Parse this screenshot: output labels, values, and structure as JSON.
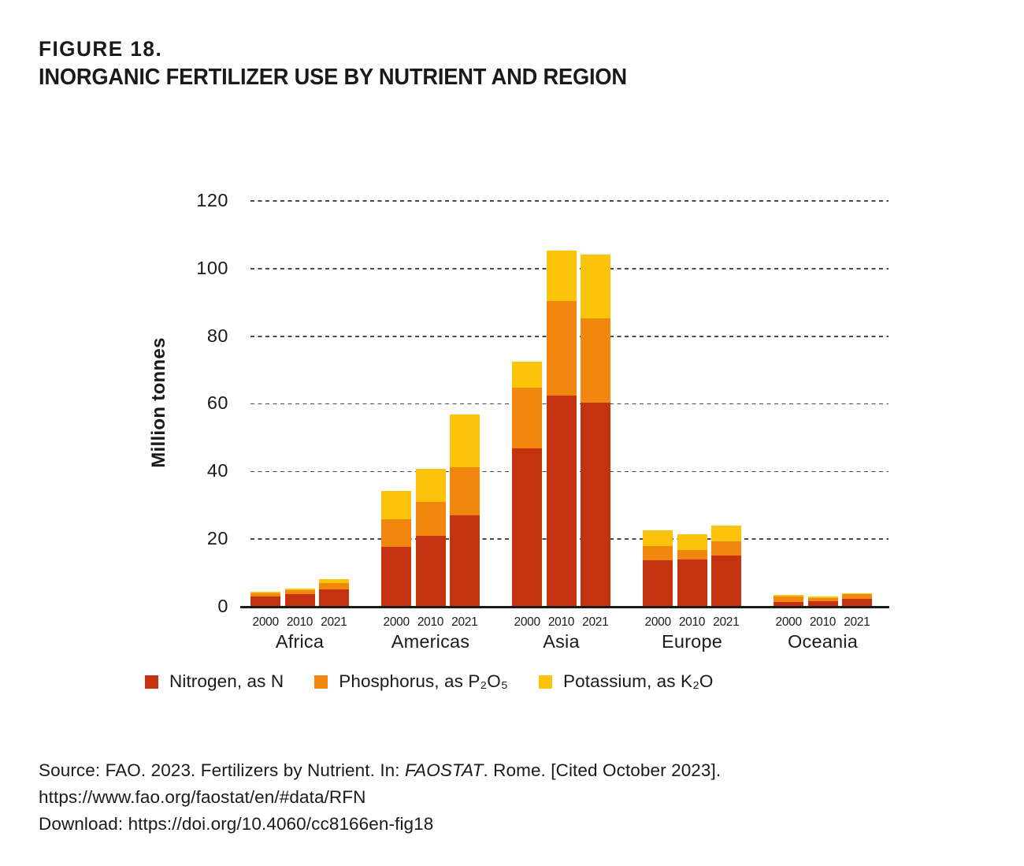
{
  "figure": {
    "label": "FIGURE 18.",
    "title": "INORGANIC FERTILIZER USE BY NUTRIENT AND REGION"
  },
  "chart_data": {
    "type": "bar",
    "stacked": true,
    "title": "Inorganic fertilizer use by nutrient and region",
    "ylabel": "Million tonnes",
    "xlabel": "",
    "ylim": [
      0,
      120
    ],
    "yticks": [
      0,
      20,
      40,
      60,
      80,
      100,
      120
    ],
    "grid": "horizontal dashed",
    "legend_position": "bottom",
    "unit": "million tonnes",
    "years": [
      "2000",
      "2010",
      "2021"
    ],
    "series_names": [
      "Nitrogen, as N",
      "Phosphorus, as P₂O₅",
      "Potassium, as K₂O"
    ],
    "colors": {
      "nitrogen": "#c5320f",
      "phosphorus": "#f1870e",
      "potassium": "#fcc30b"
    },
    "groups": [
      {
        "region": "Africa",
        "bars": [
          {
            "year": "2000",
            "nitrogen": 2.6,
            "phosphorus": 1.0,
            "potassium": 0.5,
            "total": 4.1
          },
          {
            "year": "2010",
            "nitrogen": 3.3,
            "phosphorus": 1.2,
            "potassium": 0.6,
            "total": 5.1
          },
          {
            "year": "2021",
            "nitrogen": 4.8,
            "phosphorus": 1.8,
            "potassium": 1.1,
            "total": 7.7
          }
        ]
      },
      {
        "region": "Americas",
        "bars": [
          {
            "year": "2000",
            "nitrogen": 17.3,
            "phosphorus": 8.2,
            "potassium": 8.4,
            "total": 33.9
          },
          {
            "year": "2010",
            "nitrogen": 20.6,
            "phosphorus": 10.0,
            "potassium": 9.9,
            "total": 40.5
          },
          {
            "year": "2021",
            "nitrogen": 26.7,
            "phosphorus": 14.3,
            "potassium": 15.6,
            "total": 56.6
          }
        ]
      },
      {
        "region": "Asia",
        "bars": [
          {
            "year": "2000",
            "nitrogen": 46.6,
            "phosphorus": 17.8,
            "potassium": 7.7,
            "total": 72.1
          },
          {
            "year": "2010",
            "nitrogen": 62.2,
            "phosphorus": 27.9,
            "potassium": 14.9,
            "total": 105.0
          },
          {
            "year": "2021",
            "nitrogen": 60.1,
            "phosphorus": 24.9,
            "potassium": 18.8,
            "total": 103.8
          }
        ]
      },
      {
        "region": "Europe",
        "bars": [
          {
            "year": "2000",
            "nitrogen": 13.3,
            "phosphorus": 4.3,
            "potassium": 4.6,
            "total": 22.2
          },
          {
            "year": "2010",
            "nitrogen": 13.6,
            "phosphorus": 2.9,
            "potassium": 4.7,
            "total": 21.2
          },
          {
            "year": "2021",
            "nitrogen": 14.9,
            "phosphorus": 4.2,
            "potassium": 4.6,
            "total": 23.7
          }
        ]
      },
      {
        "region": "Oceania",
        "bars": [
          {
            "year": "2000",
            "nitrogen": 1.1,
            "phosphorus": 1.6,
            "potassium": 0.4,
            "total": 3.1
          },
          {
            "year": "2010",
            "nitrogen": 1.2,
            "phosphorus": 1.1,
            "potassium": 0.3,
            "total": 2.6
          },
          {
            "year": "2021",
            "nitrogen": 1.9,
            "phosphorus": 1.4,
            "potassium": 0.4,
            "total": 3.7
          }
        ]
      }
    ]
  },
  "legend": {
    "items": [
      {
        "label": "Nitrogen, as N",
        "color": "#c5320f"
      },
      {
        "label": "Phosphorus, as P₂O₅",
        "color": "#f1870e"
      },
      {
        "label": "Potassium, as K₂O",
        "color": "#fcc30b"
      }
    ]
  },
  "source": {
    "line1_prefix": "Source: FAO. 2023. Fertilizers by Nutrient. In: ",
    "line1_italic": "FAOSTAT",
    "line1_suffix": ". Rome. [Cited October 2023].",
    "line2": "https://www.fao.org/faostat/en/#data/RFN",
    "line3": "Download: https://doi.org/10.4060/cc8166en-fig18"
  }
}
